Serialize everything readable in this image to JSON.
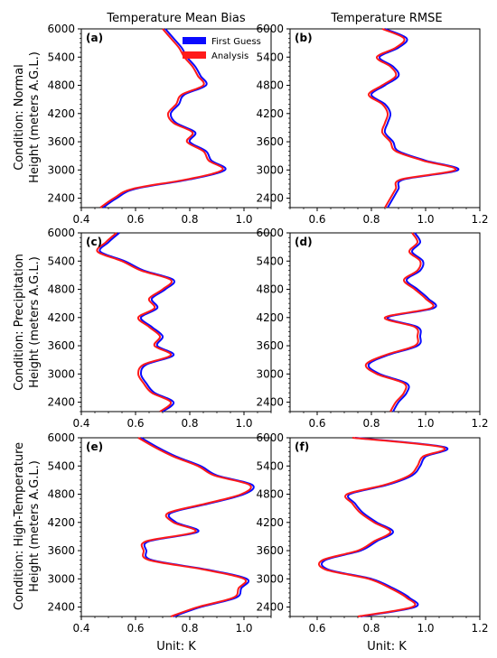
{
  "column_titles": [
    "Temperature Mean Bias",
    "Temperature RMSE"
  ],
  "row_labels": [
    [
      "Condition: Normal",
      "Height (meters A.G.L.)"
    ],
    [
      "Condition: Precipitation",
      "Height (meters A.G.L.)"
    ],
    [
      "Condition: High-Temperature",
      "Height (meters A.G.L.)"
    ]
  ],
  "xlabel": "Unit: K",
  "legend": {
    "entries": [
      "First Guess",
      "Analysis"
    ],
    "placement": "upper-right of panel (a)"
  },
  "colors": {
    "first_guess": "#0a0aff",
    "analysis": "#ff1a1a"
  },
  "chart_data": [
    {
      "panel": "(a)",
      "type": "line",
      "xlim": [
        0.4,
        1.1
      ],
      "ylim": [
        2200,
        6000
      ],
      "xticks": [
        0.4,
        0.6,
        0.8,
        1.0
      ],
      "xtick_labels": [
        "0.4",
        "0.6",
        "0.8",
        "1.0"
      ],
      "yticks": [
        2400,
        3000,
        3600,
        4200,
        4800,
        5400,
        6000
      ],
      "y": [
        2200,
        2400,
        2600,
        2800,
        3000,
        3200,
        3400,
        3600,
        3800,
        4000,
        4200,
        4400,
        4600,
        4800,
        5000,
        5200,
        5400,
        5600,
        5800,
        6000
      ],
      "series": [
        {
          "name": "First Guess",
          "x": [
            0.48,
            0.53,
            0.6,
            0.8,
            0.93,
            0.88,
            0.86,
            0.8,
            0.82,
            0.75,
            0.73,
            0.76,
            0.78,
            0.86,
            0.84,
            0.82,
            0.79,
            0.77,
            0.74,
            0.71
          ]
        },
        {
          "name": "Analysis",
          "x": [
            0.47,
            0.52,
            0.59,
            0.79,
            0.92,
            0.87,
            0.85,
            0.79,
            0.81,
            0.74,
            0.72,
            0.75,
            0.77,
            0.85,
            0.83,
            0.81,
            0.78,
            0.76,
            0.73,
            0.7
          ]
        }
      ]
    },
    {
      "panel": "(b)",
      "type": "line",
      "xlim": [
        0.5,
        1.2
      ],
      "ylim": [
        2200,
        6000
      ],
      "xticks": [
        0.6,
        0.8,
        1.0,
        1.2
      ],
      "xtick_labels": [
        "0.6",
        "0.8",
        "1.0",
        "1.2"
      ],
      "yticks": [
        2400,
        3000,
        3600,
        4200,
        4800,
        5400,
        6000
      ],
      "y": [
        2200,
        2400,
        2600,
        2800,
        3000,
        3200,
        3400,
        3600,
        3800,
        4000,
        4200,
        4400,
        4600,
        4800,
        5000,
        5200,
        5400,
        5600,
        5800,
        6000
      ],
      "series": [
        {
          "name": "First Guess",
          "x": [
            0.86,
            0.88,
            0.9,
            0.92,
            1.12,
            1.0,
            0.9,
            0.88,
            0.85,
            0.86,
            0.87,
            0.85,
            0.8,
            0.85,
            0.9,
            0.88,
            0.83,
            0.9,
            0.93,
            0.85
          ]
        },
        {
          "name": "Analysis",
          "x": [
            0.85,
            0.87,
            0.89,
            0.91,
            1.11,
            0.99,
            0.89,
            0.87,
            0.84,
            0.85,
            0.86,
            0.84,
            0.79,
            0.84,
            0.89,
            0.87,
            0.82,
            0.89,
            0.92,
            0.84
          ]
        }
      ]
    },
    {
      "panel": "(c)",
      "type": "line",
      "xlim": [
        0.4,
        1.1
      ],
      "ylim": [
        2200,
        6000
      ],
      "xticks": [
        0.4,
        0.6,
        0.8,
        1.0
      ],
      "xtick_labels": [
        "0.4",
        "0.6",
        "0.8",
        "1.0"
      ],
      "yticks": [
        2400,
        3000,
        3600,
        4200,
        4800,
        5400,
        6000
      ],
      "y": [
        2200,
        2400,
        2600,
        2800,
        3000,
        3200,
        3400,
        3600,
        3800,
        4000,
        4200,
        4400,
        4600,
        4800,
        5000,
        5200,
        5400,
        5600,
        5800,
        6000
      ],
      "series": [
        {
          "name": "First Guess",
          "x": [
            0.7,
            0.74,
            0.67,
            0.64,
            0.62,
            0.64,
            0.74,
            0.68,
            0.7,
            0.66,
            0.62,
            0.68,
            0.66,
            0.71,
            0.74,
            0.63,
            0.56,
            0.47,
            0.5,
            0.54
          ]
        },
        {
          "name": "Analysis",
          "x": [
            0.69,
            0.73,
            0.66,
            0.63,
            0.61,
            0.63,
            0.73,
            0.67,
            0.69,
            0.65,
            0.61,
            0.67,
            0.65,
            0.7,
            0.73,
            0.62,
            0.55,
            0.46,
            0.49,
            0.53
          ]
        }
      ]
    },
    {
      "panel": "(d)",
      "type": "line",
      "xlim": [
        0.5,
        1.2
      ],
      "ylim": [
        2200,
        6000
      ],
      "xticks": [
        0.6,
        0.8,
        1.0,
        1.2
      ],
      "xtick_labels": [
        "0.6",
        "0.8",
        "1.0",
        "1.2"
      ],
      "yticks": [
        2400,
        3000,
        3600,
        4200,
        4800,
        5400,
        6000
      ],
      "y": [
        2200,
        2400,
        2600,
        2800,
        3000,
        3200,
        3400,
        3600,
        3800,
        4000,
        4200,
        4400,
        4600,
        4800,
        5000,
        5200,
        5400,
        5600,
        5800,
        6000
      ],
      "series": [
        {
          "name": "First Guess",
          "x": [
            0.88,
            0.9,
            0.93,
            0.93,
            0.83,
            0.79,
            0.86,
            0.97,
            0.98,
            0.97,
            0.86,
            1.03,
            1.01,
            0.97,
            0.93,
            0.98,
            0.99,
            0.95,
            0.98,
            0.96
          ]
        },
        {
          "name": "Analysis",
          "x": [
            0.87,
            0.89,
            0.92,
            0.92,
            0.82,
            0.78,
            0.85,
            0.96,
            0.97,
            0.96,
            0.85,
            1.02,
            1.0,
            0.96,
            0.92,
            0.97,
            0.98,
            0.94,
            0.97,
            0.95
          ]
        }
      ]
    },
    {
      "panel": "(e)",
      "type": "line",
      "xlim": [
        0.4,
        1.1
      ],
      "ylim": [
        2200,
        6000
      ],
      "xticks": [
        0.4,
        0.6,
        0.8,
        1.0
      ],
      "xtick_labels": [
        "0.4",
        "0.6",
        "0.8",
        "1.0"
      ],
      "yticks": [
        2400,
        3000,
        3600,
        4200,
        4800,
        5400,
        6000
      ],
      "y": [
        2200,
        2400,
        2600,
        2800,
        3000,
        3200,
        3400,
        3600,
        3800,
        4000,
        4200,
        4400,
        4600,
        4800,
        5000,
        5200,
        5400,
        5600,
        5800,
        6000
      ],
      "series": [
        {
          "name": "First Guess",
          "x": [
            0.74,
            0.84,
            0.97,
            0.99,
            1.01,
            0.86,
            0.66,
            0.64,
            0.65,
            0.83,
            0.75,
            0.73,
            0.87,
            1.0,
            1.03,
            0.9,
            0.84,
            0.75,
            0.68,
            0.62
          ]
        },
        {
          "name": "Analysis",
          "x": [
            0.73,
            0.83,
            0.96,
            0.98,
            1.0,
            0.85,
            0.65,
            0.63,
            0.64,
            0.82,
            0.74,
            0.72,
            0.86,
            0.99,
            1.02,
            0.89,
            0.83,
            0.74,
            0.67,
            0.61
          ]
        }
      ]
    },
    {
      "panel": "(f)",
      "type": "line",
      "xlim": [
        0.5,
        1.2
      ],
      "ylim": [
        2200,
        6000
      ],
      "xticks": [
        0.6,
        0.8,
        1.0,
        1.2
      ],
      "xtick_labels": [
        "0.6",
        "0.8",
        "1.0",
        "1.2"
      ],
      "yticks": [
        2400,
        3000,
        3600,
        4200,
        4800,
        5400,
        6000
      ],
      "y": [
        2200,
        2400,
        2600,
        2800,
        3000,
        3200,
        3400,
        3600,
        3800,
        4000,
        4200,
        4400,
        4600,
        4800,
        5000,
        5200,
        5400,
        5600,
        5800,
        6000
      ],
      "series": [
        {
          "name": "First Guess",
          "x": [
            0.76,
            0.96,
            0.94,
            0.88,
            0.8,
            0.64,
            0.63,
            0.76,
            0.82,
            0.88,
            0.82,
            0.77,
            0.74,
            0.72,
            0.86,
            0.95,
            0.98,
            1.0,
            1.07,
            0.74
          ]
        },
        {
          "name": "Analysis",
          "x": [
            0.75,
            0.95,
            0.93,
            0.87,
            0.79,
            0.63,
            0.62,
            0.75,
            0.81,
            0.87,
            0.81,
            0.76,
            0.73,
            0.71,
            0.85,
            0.94,
            0.97,
            0.99,
            1.06,
            0.73
          ]
        }
      ]
    }
  ]
}
